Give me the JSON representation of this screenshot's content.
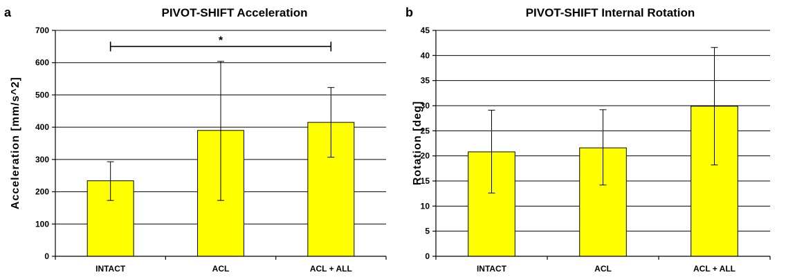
{
  "chart_data": [
    {
      "panel": "a",
      "type": "bar",
      "title": "PIVOT-SHIFT Acceleration",
      "xlabel": "",
      "ylabel": "Acceleration [mm/s^2]",
      "categories": [
        "INTACT",
        "ACL",
        "ACL + ALL"
      ],
      "values": [
        234,
        390,
        415
      ],
      "error_low": [
        173,
        173,
        307
      ],
      "error_high": [
        293,
        604,
        523
      ],
      "ylim": [
        0,
        700
      ],
      "yticks": [
        0,
        100,
        200,
        300,
        400,
        500,
        600,
        700
      ],
      "grid": true,
      "legend": "none",
      "significance": {
        "from": "INTACT",
        "to": "ACL + ALL",
        "label": "*",
        "y": 650
      },
      "bar_color": "#ffff00"
    },
    {
      "panel": "b",
      "type": "bar",
      "title": "PIVOT-SHIFT Internal Rotation",
      "xlabel": "",
      "ylabel": "Rotation [deg]",
      "categories": [
        "INTACT",
        "ACL",
        "ACL + ALL"
      ],
      "values": [
        20.8,
        21.6,
        29.9
      ],
      "error_low": [
        12.6,
        14.2,
        18.2
      ],
      "error_high": [
        29.1,
        29.2,
        41.6
      ],
      "ylim": [
        0,
        45
      ],
      "yticks": [
        0,
        5,
        10,
        15,
        20,
        25,
        30,
        35,
        40,
        45
      ],
      "grid": true,
      "legend": "none",
      "bar_color": "#ffff00"
    }
  ]
}
